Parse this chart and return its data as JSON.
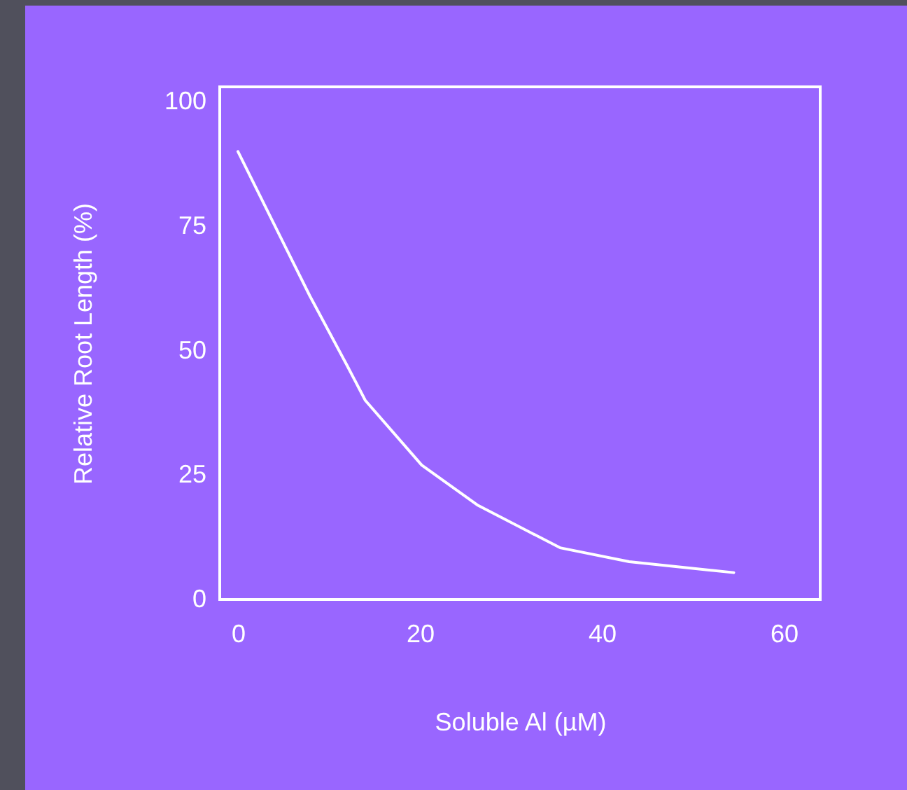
{
  "chart_data": {
    "type": "line",
    "xlabel": "Soluble Al  (µM)",
    "ylabel": "Relative Root Length (%)",
    "x": [
      0,
      4.9,
      7.9,
      12,
      14,
      20.2,
      26.3,
      35.4,
      43,
      54.5
    ],
    "series": [
      {
        "color": "#ffffff",
        "values": [
          90,
          72,
          61,
          47,
          40,
          27,
          19,
          10.4,
          7.6,
          5.4
        ]
      }
    ],
    "xlim": [
      -2,
      64
    ],
    "xticks": [
      0,
      20,
      40,
      60
    ],
    "ylim": [
      0,
      103
    ],
    "yticks": [
      0,
      25,
      50,
      75,
      100
    ],
    "grid": false,
    "marker": "none",
    "line_style": "solid"
  }
}
